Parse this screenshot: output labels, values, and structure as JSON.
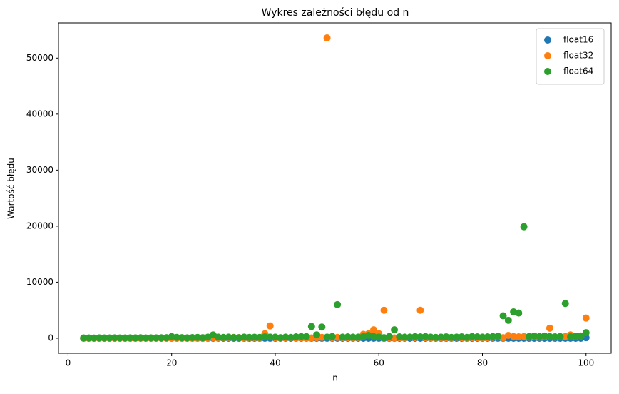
{
  "chart_data": {
    "type": "scatter",
    "title": "Wykres zależności błędu od n",
    "x_label": "n",
    "y_label": "Wartość błędu",
    "x": [
      3,
      4,
      5,
      6,
      7,
      8,
      9,
      10,
      11,
      12,
      13,
      14,
      15,
      16,
      17,
      18,
      19,
      20,
      21,
      22,
      23,
      24,
      25,
      26,
      27,
      28,
      29,
      30,
      31,
      32,
      33,
      34,
      35,
      36,
      37,
      38,
      39,
      40,
      41,
      42,
      43,
      44,
      45,
      46,
      47,
      48,
      49,
      50,
      51,
      52,
      53,
      54,
      55,
      56,
      57,
      58,
      59,
      60,
      61,
      62,
      63,
      64,
      65,
      66,
      67,
      68,
      69,
      70,
      71,
      72,
      73,
      74,
      75,
      76,
      77,
      78,
      79,
      80,
      81,
      82,
      83,
      84,
      85,
      86,
      87,
      88,
      89,
      90,
      91,
      92,
      93,
      94,
      95,
      96,
      97,
      98,
      99,
      100
    ],
    "series": [
      {
        "name": "float16",
        "color": "#1f77b4",
        "values": [
          0,
          0,
          0,
          0,
          0,
          0,
          0,
          0,
          0,
          0,
          0,
          0,
          0,
          0,
          0,
          0,
          0,
          0,
          0,
          0,
          0,
          0,
          0,
          0,
          0,
          0,
          0,
          0,
          0,
          0,
          0,
          0,
          0,
          0,
          0,
          0,
          0,
          0,
          0,
          0,
          0,
          0,
          0,
          0,
          0,
          0,
          0,
          0,
          0,
          0,
          0,
          0,
          0,
          0,
          0,
          0,
          0,
          0,
          0,
          0,
          0,
          0,
          0,
          0,
          0,
          0,
          0,
          0,
          0,
          0,
          0,
          0,
          0,
          0,
          0,
          0,
          0,
          0,
          0,
          0,
          0,
          0,
          0,
          0,
          0,
          0,
          0,
          0,
          0,
          0,
          0,
          0,
          0,
          0,
          0,
          0,
          0,
          100
        ]
      },
      {
        "name": "float32",
        "color": "#ff7f0e",
        "values": [
          0,
          0,
          0,
          0,
          0,
          0,
          0,
          0,
          0,
          0,
          50,
          0,
          0,
          0,
          0,
          50,
          0,
          0,
          0,
          0,
          0,
          0,
          0,
          50,
          50,
          100,
          50,
          100,
          100,
          150,
          100,
          50,
          100,
          100,
          50,
          800,
          2200,
          100,
          50,
          50,
          100,
          0,
          50,
          0,
          50,
          100,
          150,
          53600,
          100,
          150,
          100,
          100,
          50,
          100,
          700,
          800,
          1500,
          800,
          5000,
          100,
          50,
          100,
          50,
          200,
          100,
          5000,
          100,
          50,
          100,
          100,
          100,
          50,
          150,
          100,
          50,
          100,
          100,
          50,
          100,
          150,
          200,
          100,
          500,
          300,
          250,
          300,
          200,
          250,
          200,
          300,
          1800,
          200,
          250,
          300,
          600,
          300,
          400,
          3600
        ]
      },
      {
        "name": "float64",
        "color": "#2ca02c",
        "values": [
          50,
          60,
          40,
          70,
          50,
          60,
          80,
          60,
          50,
          80,
          70,
          90,
          60,
          80,
          70,
          90,
          100,
          300,
          150,
          100,
          80,
          120,
          150,
          100,
          200,
          600,
          200,
          150,
          200,
          120,
          100,
          200,
          150,
          180,
          150,
          250,
          200,
          200,
          100,
          200,
          150,
          250,
          300,
          300,
          2100,
          600,
          2000,
          200,
          300,
          6000,
          200,
          250,
          200,
          200,
          300,
          500,
          300,
          200,
          100,
          300,
          1500,
          250,
          200,
          200,
          300,
          250,
          300,
          200,
          150,
          200,
          250,
          150,
          200,
          250,
          150,
          300,
          250,
          200,
          250,
          300,
          350,
          4000,
          3200,
          4700,
          4500,
          19900,
          300,
          400,
          300,
          400,
          300,
          250,
          300,
          6200,
          250,
          350,
          400,
          1000
        ]
      }
    ],
    "xlim": [
      -1.85,
      104.85
    ],
    "ylim": [
      -2680,
      56280
    ],
    "xticks": [
      0,
      20,
      40,
      60,
      80,
      100
    ],
    "yticks": [
      0,
      10000,
      20000,
      30000,
      40000,
      50000
    ],
    "legend": "upper right"
  }
}
